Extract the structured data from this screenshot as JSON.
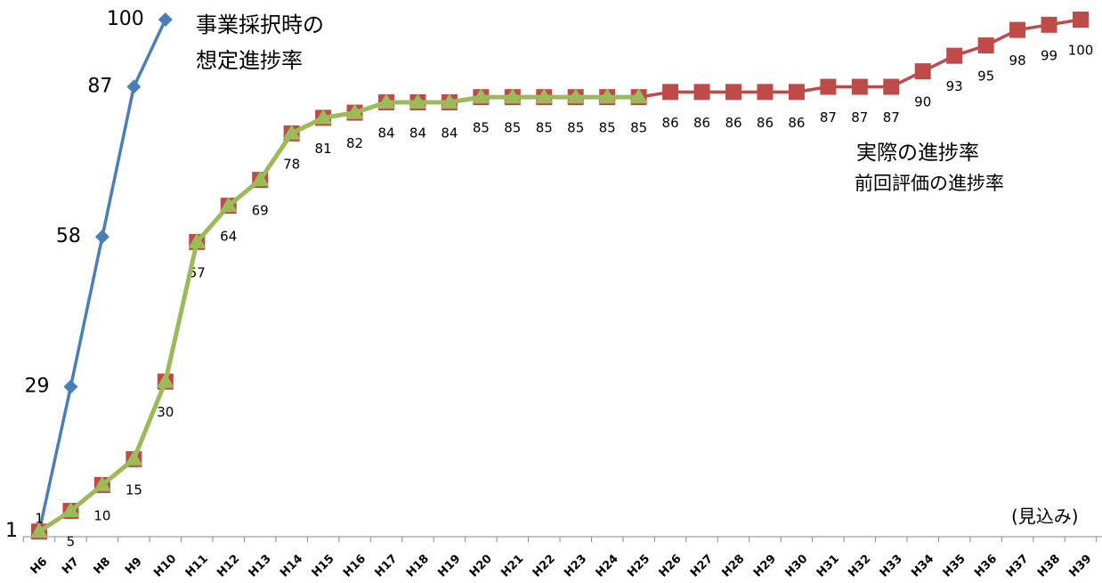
{
  "chart_data": {
    "type": "line",
    "categories": [
      "H6",
      "H7",
      "H8",
      "H9",
      "H10",
      "H11",
      "H12",
      "H13",
      "H14",
      "H15",
      "H16",
      "H17",
      "H18",
      "H19",
      "H20",
      "H21",
      "H22",
      "H23",
      "H24",
      "H25",
      "H26",
      "H27",
      "H28",
      "H29",
      "H30",
      "H31",
      "H32",
      "H33",
      "H34",
      "H35",
      "H36",
      "H37",
      "H38",
      "H39"
    ],
    "series": [
      {
        "name": "事業採択時の想定進捗率",
        "color": "#4a7ebb",
        "values": [
          1,
          29,
          58,
          87,
          100,
          null,
          null,
          null,
          null,
          null,
          null,
          null,
          null,
          null,
          null,
          null,
          null,
          null,
          null,
          null,
          null,
          null,
          null,
          null,
          null,
          null,
          null,
          null,
          null,
          null,
          null,
          null,
          null,
          null
        ]
      },
      {
        "name": "実際の進捗率",
        "color": "#be4b48",
        "values": [
          1,
          5,
          10,
          15,
          30,
          57,
          64,
          69,
          78,
          81,
          82,
          84,
          84,
          84,
          85,
          85,
          85,
          85,
          85,
          85,
          86,
          86,
          86,
          86,
          86,
          87,
          87,
          87,
          90,
          93,
          95,
          98,
          99,
          100
        ]
      },
      {
        "name": "前回評価の進捗率",
        "color": "#9bbb59",
        "values": [
          1,
          5,
          10,
          15,
          30,
          57,
          64,
          69,
          78,
          81,
          82,
          84,
          84,
          84,
          85,
          85,
          85,
          85,
          85,
          85,
          null,
          null,
          null,
          null,
          null,
          null,
          null,
          null,
          null,
          null,
          null,
          null,
          null,
          null
        ]
      }
    ],
    "annotations": [
      "(見込み)"
    ],
    "ylim": [
      0,
      100
    ]
  }
}
